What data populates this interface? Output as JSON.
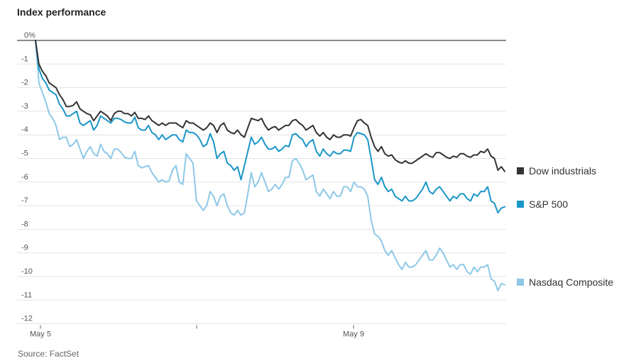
{
  "header": {
    "title": "Index performance"
  },
  "footer": {
    "source": "Source: FactSet"
  },
  "chart_data": {
    "type": "line",
    "title": "Index performance",
    "ylim": [
      -12,
      0
    ],
    "y_ticks": [
      "0%",
      "-1",
      "-2",
      "-3",
      "-4",
      "-5",
      "-6",
      "-7",
      "-8",
      "-9",
      "-10",
      "-11",
      "-12"
    ],
    "x_labels": [
      "May 5",
      "",
      "May 9"
    ],
    "grid": true,
    "legend_placement": "right",
    "colors": {
      "dow": "#333333",
      "sp": "#1a96c8",
      "nasdaq": "#8ec8e8"
    },
    "series": [
      {
        "name": "Dow industrials",
        "color": "#333333",
        "values": [
          0,
          -1,
          -1.3,
          -1.5,
          -1.8,
          -1.9,
          -2.0,
          -2.3,
          -2.5,
          -2.8,
          -2.8,
          -2.75,
          -2.6,
          -2.9,
          -3.0,
          -3.1,
          -3.15,
          -3.4,
          -3.2,
          -3.0,
          -3.1,
          -3.2,
          -3.4,
          -3.1,
          -3.0,
          -3.0,
          -3.1,
          -3.1,
          -3.2,
          -3.05,
          -3.3,
          -3.3,
          -3.35,
          -3.2,
          -3.4,
          -3.5,
          -3.6,
          -3.5,
          -3.6,
          -3.5,
          -3.5,
          -3.5,
          -3.6,
          -3.7,
          -3.4,
          -3.5,
          -3.5,
          -3.6,
          -3.7,
          -3.8,
          -3.7,
          -3.5,
          -3.6,
          -3.9,
          -3.6,
          -3.5,
          -3.8,
          -3.9,
          -3.95,
          -3.8,
          -4.0,
          -4.1,
          -3.7,
          -3.3,
          -3.35,
          -3.4,
          -3.3,
          -3.6,
          -3.8,
          -3.7,
          -3.65,
          -3.8,
          -3.7,
          -3.6,
          -3.6,
          -3.4,
          -3.35,
          -3.5,
          -3.6,
          -3.8,
          -3.7,
          -3.6,
          -3.9,
          -4.05,
          -3.9,
          -4.1,
          -4.2,
          -4.0,
          -4.1,
          -4.1,
          -4.0,
          -4.0,
          -4.05,
          -3.7,
          -3.4,
          -3.35,
          -3.5,
          -3.6,
          -4.1,
          -4.5,
          -4.7,
          -4.5,
          -4.8,
          -4.9,
          -4.85,
          -5.05,
          -5.15,
          -5.2,
          -5.1,
          -5.2,
          -5.2,
          -5.1,
          -5.0,
          -4.9,
          -4.8,
          -4.9,
          -4.95,
          -4.75,
          -4.75,
          -4.85,
          -4.95,
          -5.0,
          -4.9,
          -4.95,
          -4.8,
          -4.8,
          -4.9,
          -4.95,
          -4.85,
          -4.85,
          -4.7,
          -4.75,
          -4.6,
          -4.9,
          -5.0,
          -5.5,
          -5.35,
          -5.55
        ]
      },
      {
        "name": "S&P 500",
        "color": "#1a96c8",
        "values": [
          0,
          -1.2,
          -1.6,
          -1.8,
          -2.1,
          -2.2,
          -2.3,
          -2.7,
          -2.9,
          -3.2,
          -3.2,
          -3.1,
          -3.0,
          -3.5,
          -3.6,
          -3.5,
          -3.4,
          -3.8,
          -3.6,
          -3.2,
          -3.3,
          -3.4,
          -3.5,
          -3.3,
          -3.3,
          -3.35,
          -3.45,
          -3.5,
          -3.5,
          -3.25,
          -3.7,
          -3.8,
          -3.8,
          -3.6,
          -3.9,
          -4.0,
          -4.2,
          -4.0,
          -4.2,
          -4.1,
          -4.0,
          -4.0,
          -4.2,
          -4.3,
          -3.8,
          -3.9,
          -3.9,
          -4.0,
          -4.2,
          -4.5,
          -4.4,
          -3.95,
          -4.3,
          -5.0,
          -4.8,
          -4.7,
          -5.2,
          -5.3,
          -5.5,
          -5.35,
          -5.9,
          -5.3,
          -4.7,
          -4.1,
          -4.4,
          -4.3,
          -4.1,
          -4.4,
          -4.6,
          -4.6,
          -4.5,
          -4.7,
          -4.6,
          -4.45,
          -4.5,
          -4.0,
          -3.95,
          -4.1,
          -4.2,
          -4.5,
          -4.3,
          -4.2,
          -4.7,
          -4.9,
          -4.6,
          -4.8,
          -4.9,
          -4.7,
          -4.8,
          -4.8,
          -4.65,
          -4.65,
          -4.7,
          -4.1,
          -3.9,
          -3.95,
          -4.0,
          -4.2,
          -5.0,
          -5.9,
          -6.1,
          -5.8,
          -6.2,
          -6.4,
          -6.3,
          -6.6,
          -6.7,
          -6.8,
          -6.6,
          -6.8,
          -6.8,
          -6.7,
          -6.5,
          -6.3,
          -6.0,
          -6.4,
          -6.5,
          -6.3,
          -6.2,
          -6.4,
          -6.6,
          -6.8,
          -6.6,
          -6.7,
          -6.5,
          -6.5,
          -6.7,
          -6.8,
          -6.5,
          -6.6,
          -6.4,
          -6.4,
          -6.2,
          -6.8,
          -6.9,
          -7.3,
          -7.1,
          -7.05
        ]
      },
      {
        "name": "Nasdaq Composite",
        "color": "#8ec8e8",
        "values": [
          0,
          -1.8,
          -2.2,
          -2.6,
          -3.1,
          -3.3,
          -3.6,
          -4.2,
          -4.1,
          -4.1,
          -4.5,
          -4.4,
          -4.2,
          -4.6,
          -5.0,
          -4.7,
          -4.5,
          -4.8,
          -4.9,
          -4.4,
          -4.7,
          -4.8,
          -5.0,
          -4.6,
          -4.6,
          -4.75,
          -4.95,
          -5.0,
          -5.0,
          -4.7,
          -5.3,
          -5.4,
          -5.35,
          -5.3,
          -5.6,
          -5.8,
          -6.0,
          -5.9,
          -6.0,
          -5.95,
          -5.5,
          -5.3,
          -6.0,
          -6.1,
          -4.8,
          -5.0,
          -5.2,
          -6.8,
          -7.0,
          -7.2,
          -7.0,
          -6.4,
          -6.6,
          -7.0,
          -6.6,
          -6.5,
          -7.0,
          -7.3,
          -7.4,
          -7.2,
          -7.4,
          -7.3,
          -6.5,
          -5.6,
          -6.2,
          -6.0,
          -5.6,
          -6.0,
          -6.4,
          -6.3,
          -6.1,
          -6.3,
          -6.1,
          -5.8,
          -5.8,
          -5.1,
          -5.0,
          -5.2,
          -5.5,
          -5.9,
          -5.8,
          -5.7,
          -6.4,
          -6.6,
          -6.3,
          -6.5,
          -6.7,
          -6.4,
          -6.6,
          -6.6,
          -6.2,
          -6.2,
          -6.4,
          -6.0,
          -6.2,
          -6.2,
          -6.3,
          -6.6,
          -7.6,
          -8.2,
          -8.3,
          -8.5,
          -8.9,
          -9.1,
          -8.9,
          -9.2,
          -9.5,
          -9.7,
          -9.4,
          -9.6,
          -9.6,
          -9.5,
          -9.3,
          -9.1,
          -8.9,
          -9.3,
          -9.3,
          -9.1,
          -8.8,
          -9.0,
          -9.3,
          -9.6,
          -9.5,
          -9.7,
          -9.5,
          -9.5,
          -9.8,
          -9.9,
          -9.6,
          -9.8,
          -9.6,
          -9.6,
          -9.5,
          -10.1,
          -10.2,
          -10.6,
          -10.3,
          -10.35
        ]
      }
    ]
  }
}
